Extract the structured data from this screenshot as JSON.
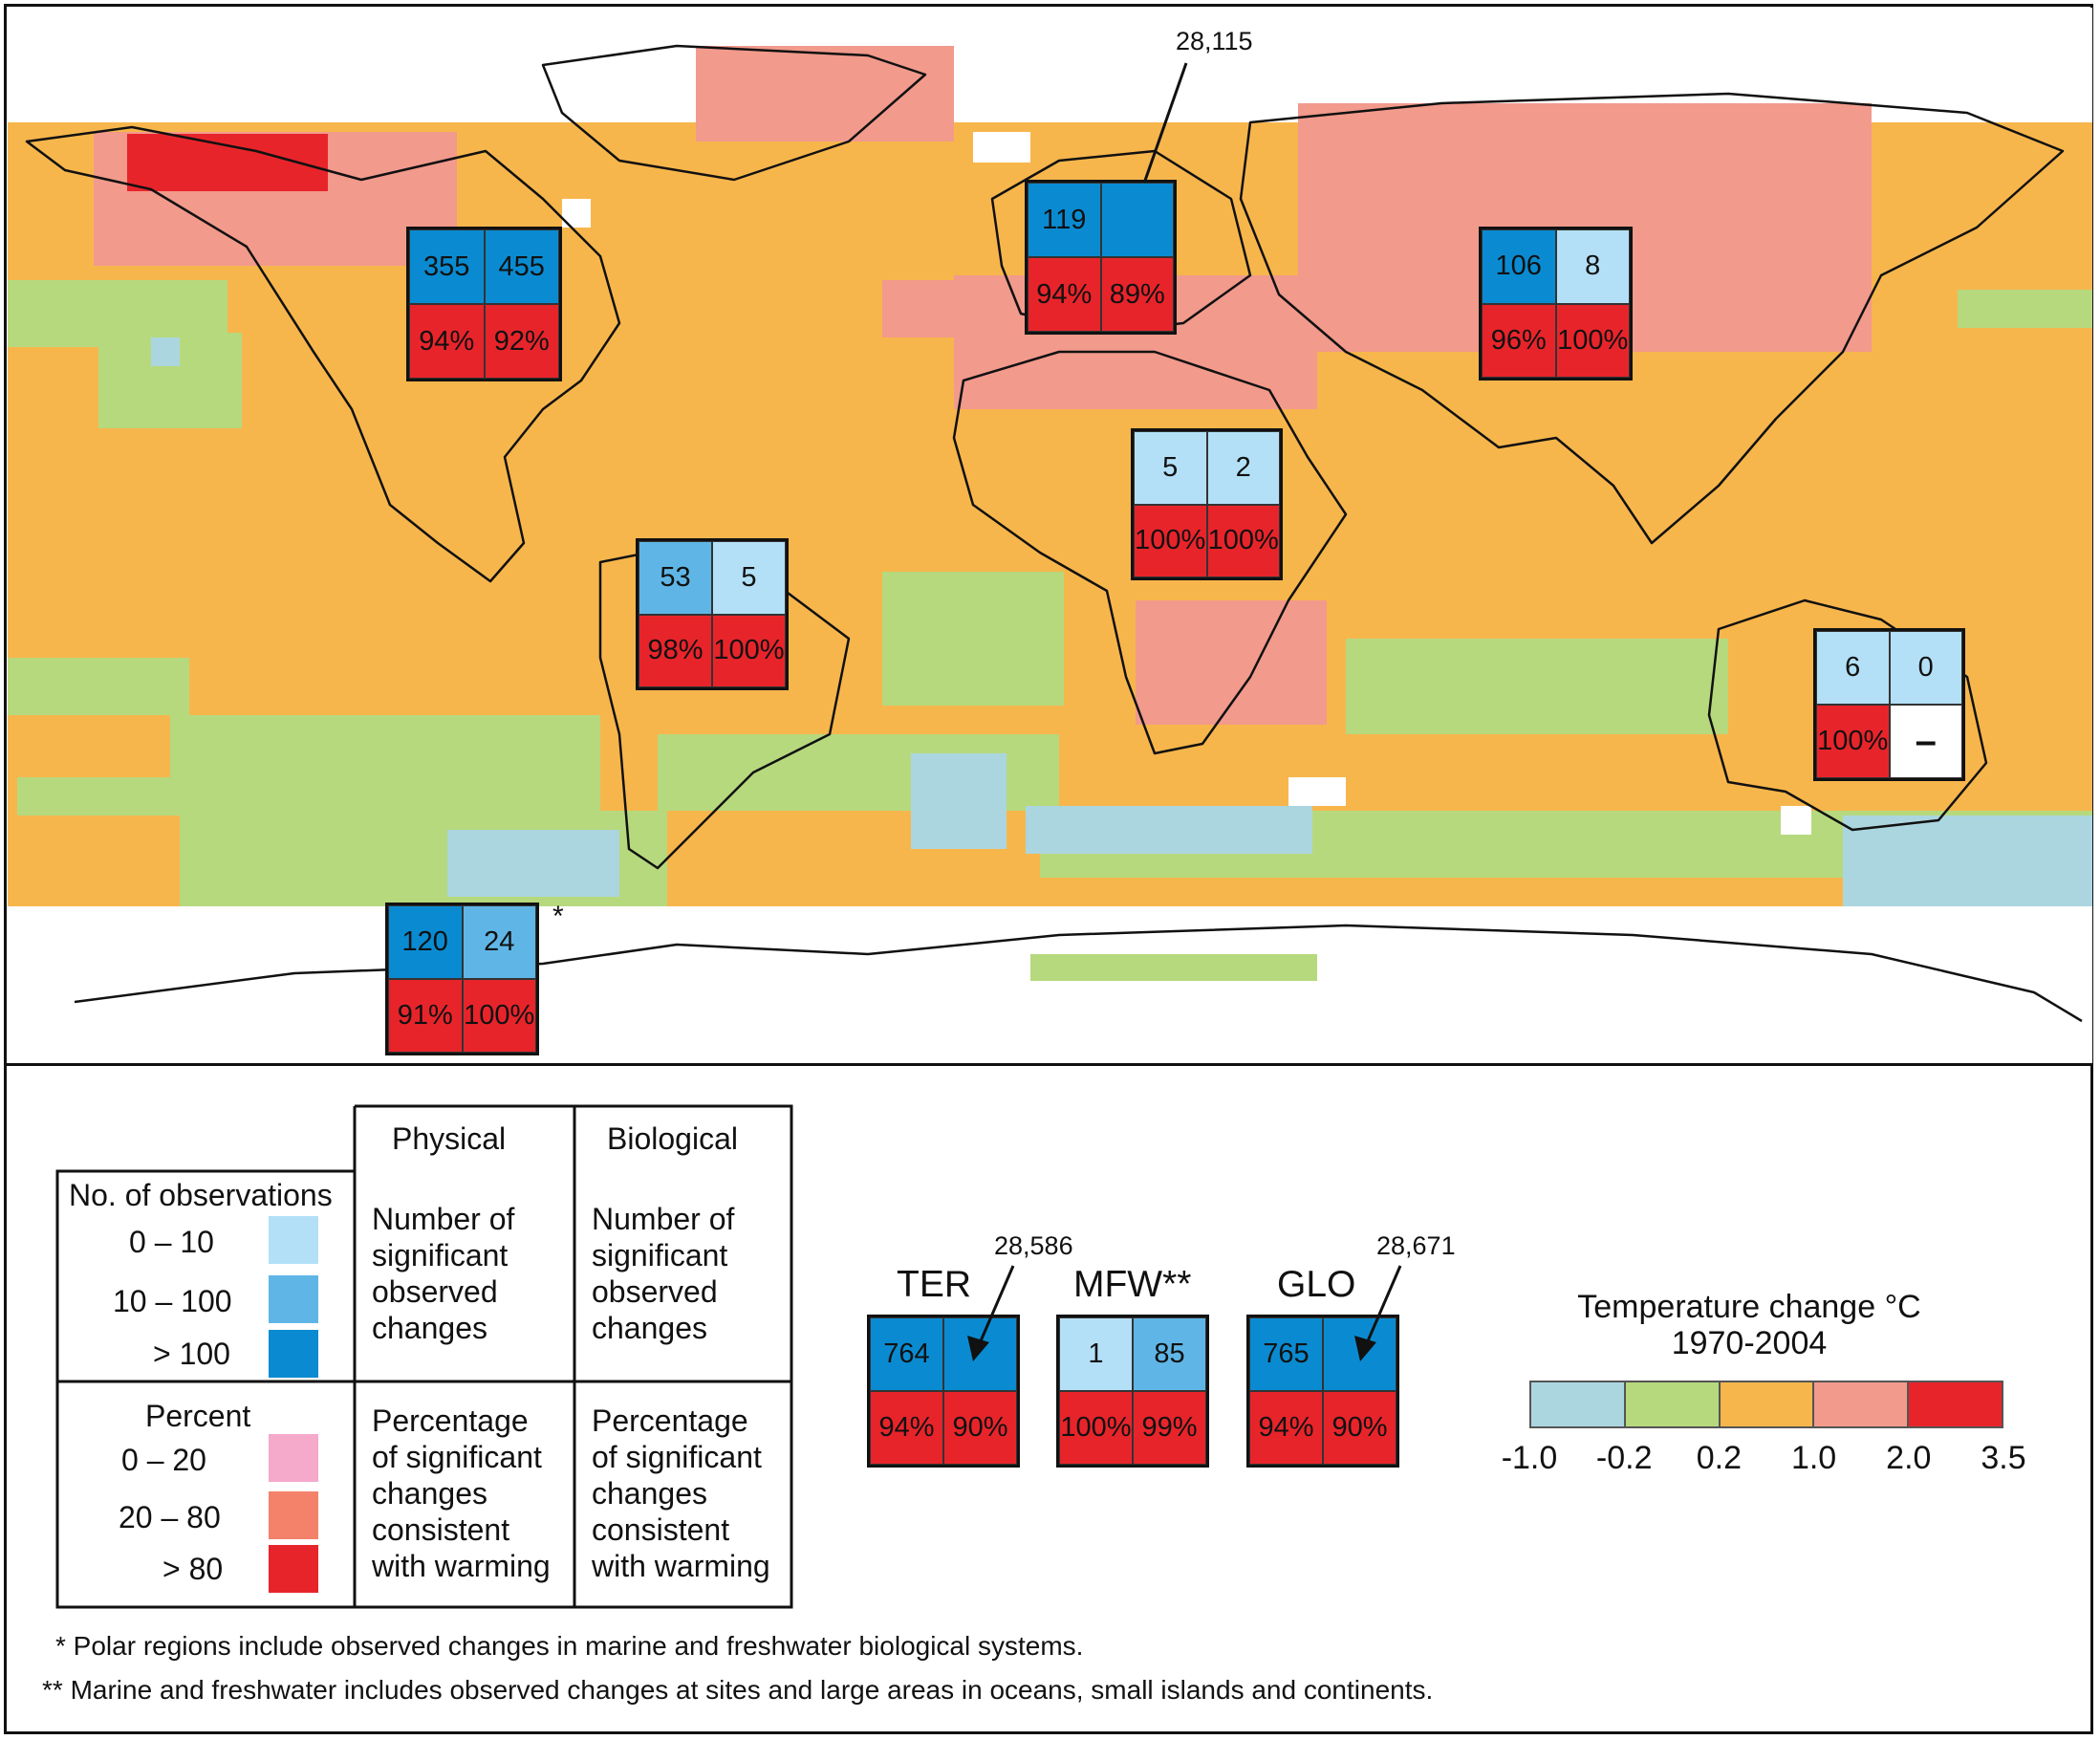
{
  "map_colors": {
    "ocean": "#f7b64c",
    "land_outline": "#111111",
    "bin_-1.0_-0.2": "#abd6df",
    "bin_-0.2_0.2": "#b6d97e",
    "bin_0.2_1.0": "#f7b64c",
    "bin_1.0_2.0": "#f29a8c",
    "bin_2.0_3.5": "#e8242b",
    "no_data": "#ffffff"
  },
  "count_colors": {
    "0-10": "#b3e0f7",
    "10-100": "#5fb6e6",
    ">100": "#0a8bd1"
  },
  "percent_colors": {
    "0-20": "#f5a9cb",
    "20-80": "#f4826a",
    ">80": "#e8242b"
  },
  "regions": [
    {
      "name": "North America",
      "physical_count": "355",
      "biological_count": "455",
      "physical_pct": "94%",
      "biological_pct": "92%",
      "count_class": [
        ">100",
        ">100"
      ]
    },
    {
      "name": "Europe",
      "physical_count": "119",
      "biological_count": "",
      "physical_pct": "94%",
      "biological_pct": "89%",
      "callout": "28,115",
      "count_class": [
        ">100",
        ">100"
      ]
    },
    {
      "name": "Asia",
      "physical_count": "106",
      "biological_count": "8",
      "physical_pct": "96%",
      "biological_pct": "100%",
      "count_class": [
        ">100",
        "0-10"
      ]
    },
    {
      "name": "Africa",
      "physical_count": "5",
      "biological_count": "2",
      "physical_pct": "100%",
      "biological_pct": "100%",
      "count_class": [
        "0-10",
        "0-10"
      ]
    },
    {
      "name": "Latin America",
      "physical_count": "53",
      "biological_count": "5",
      "physical_pct": "98%",
      "biological_pct": "100%",
      "count_class": [
        "10-100",
        "0-10"
      ]
    },
    {
      "name": "Australia and New Zealand",
      "physical_count": "6",
      "biological_count": "0",
      "physical_pct": "100%",
      "biological_pct": "–",
      "count_class": [
        "0-10",
        "0-10"
      ]
    },
    {
      "name": "Polar regions",
      "physical_count": "120",
      "biological_count": "24",
      "physical_pct": "91%",
      "biological_pct": "100%",
      "marker": "*",
      "count_class": [
        ">100",
        "10-100"
      ]
    }
  ],
  "global_boxes": [
    {
      "label": "TER",
      "physical_count": "764",
      "biological_count": "",
      "physical_pct": "94%",
      "biological_pct": "90%",
      "callout": "28,586",
      "count_class": [
        ">100",
        ">100"
      ]
    },
    {
      "label": "MFW**",
      "physical_count": "1",
      "biological_count": "85",
      "physical_pct": "100%",
      "biological_pct": "99%",
      "count_class": [
        "0-10",
        "10-100"
      ]
    },
    {
      "label": "GLO",
      "physical_count": "765",
      "biological_count": "",
      "physical_pct": "94%",
      "biological_pct": "90%",
      "callout": "28,671",
      "count_class": [
        ">100",
        ">100"
      ]
    }
  ],
  "legend": {
    "col_physical": "Physical",
    "col_biological": "Biological",
    "obs_title": "No. of observations",
    "obs_items": [
      "0 – 10",
      "10 – 100",
      "> 100"
    ],
    "pct_title": "Percent",
    "pct_items": [
      "0 – 20",
      "20 – 80",
      "> 80"
    ],
    "count_desc_lines": [
      "Number of",
      "significant",
      "observed",
      "changes"
    ],
    "pct_desc_lines": [
      "Percentage",
      "of significant",
      "changes",
      "consistent",
      "with warming"
    ]
  },
  "temperature_scale": {
    "title_line1": "Temperature change °C",
    "title_line2": "1970-2004",
    "ticks": [
      "-1.0",
      "-0.2",
      "0.2",
      "1.0",
      "2.0",
      "3.5"
    ],
    "bins": [
      {
        "min": -1.0,
        "max": -0.2,
        "color": "#abd6df"
      },
      {
        "min": -0.2,
        "max": 0.2,
        "color": "#b6d97e"
      },
      {
        "min": 0.2,
        "max": 1.0,
        "color": "#f7b64c"
      },
      {
        "min": 1.0,
        "max": 2.0,
        "color": "#f29a8c"
      },
      {
        "min": 2.0,
        "max": 3.5,
        "color": "#e8242b"
      }
    ]
  },
  "footnotes": [
    "* Polar regions include observed changes in marine and freshwater biological systems.",
    "** Marine and freshwater includes observed changes at sites and large areas in oceans, small islands and continents."
  ]
}
